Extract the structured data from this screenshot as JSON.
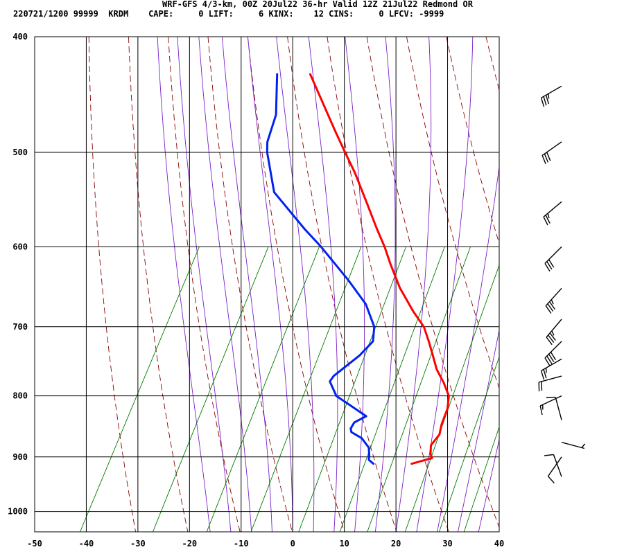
{
  "header": {
    "line1": "WRF-GFS 4/3-km, 00Z 20Jul22 36-hr Valid 12Z 21Jul22 Redmond OR",
    "line2": "220721/1200 99999  KRDM    CAPE:     0 LIFT:     6 KINX:    12 CINS:     0 LFCV: -9999"
  },
  "colors": {
    "frame": "#000000",
    "dry_adiabat": "#8a0000",
    "moist_adiabat": "#7a1fc8",
    "mixing_ratio": "#007a00",
    "temperature": "#ff0000",
    "dewpoint": "#0022ee",
    "barb": "#000000"
  },
  "chart_data": {
    "type": "skew-t",
    "x_axis": {
      "label": "",
      "min": -50,
      "max": 40,
      "ticks": [
        -50,
        -40,
        -30,
        -20,
        -10,
        0,
        10,
        20,
        30,
        40
      ]
    },
    "y_axis": {
      "label": "",
      "min": 400,
      "max": 1040,
      "scale": "log",
      "ticks": [
        400,
        500,
        600,
        700,
        800,
        900,
        1000
      ],
      "reversed": true
    },
    "grid": true,
    "series": [
      {
        "name": "",
        "kind": "temperature",
        "points": [
          {
            "p": 912,
            "t": 16.3
          },
          {
            "p": 907,
            "t": 18.0
          },
          {
            "p": 902,
            "t": 19.7
          },
          {
            "p": 895,
            "t": 19.0
          },
          {
            "p": 880,
            "t": 18.2
          },
          {
            "p": 862,
            "t": 18.8
          },
          {
            "p": 845,
            "t": 18.2
          },
          {
            "p": 820,
            "t": 17.8
          },
          {
            "p": 800,
            "t": 16.8
          },
          {
            "p": 780,
            "t": 14.5
          },
          {
            "p": 760,
            "t": 11.8
          },
          {
            "p": 740,
            "t": 9.7
          },
          {
            "p": 720,
            "t": 7.5
          },
          {
            "p": 700,
            "t": 5.1
          },
          {
            "p": 680,
            "t": 1.6
          },
          {
            "p": 650,
            "t": -3.3
          },
          {
            "p": 620,
            "t": -7.6
          },
          {
            "p": 600,
            "t": -10.4
          },
          {
            "p": 580,
            "t": -13.6
          },
          {
            "p": 550,
            "t": -18.4
          },
          {
            "p": 520,
            "t": -23.5
          },
          {
            "p": 500,
            "t": -27.4
          },
          {
            "p": 480,
            "t": -31.4
          },
          {
            "p": 430,
            "t": -41.9
          }
        ]
      },
      {
        "name": "",
        "kind": "dewpoint",
        "points": [
          {
            "p": 912,
            "t": 8.9
          },
          {
            "p": 905,
            "t": 7.6
          },
          {
            "p": 898,
            "t": 7.3
          },
          {
            "p": 884,
            "t": 6.4
          },
          {
            "p": 868,
            "t": 4.1
          },
          {
            "p": 858,
            "t": 1.5
          },
          {
            "p": 852,
            "t": 1.0
          },
          {
            "p": 842,
            "t": 1.1
          },
          {
            "p": 832,
            "t": 2.8
          },
          {
            "p": 800,
            "t": -5.0
          },
          {
            "p": 778,
            "t": -7.7
          },
          {
            "p": 770,
            "t": -7.5
          },
          {
            "p": 740,
            "t": -4.5
          },
          {
            "p": 720,
            "t": -3.3
          },
          {
            "p": 700,
            "t": -4.5
          },
          {
            "p": 670,
            "t": -8.4
          },
          {
            "p": 640,
            "t": -14.1
          },
          {
            "p": 600,
            "t": -22.7
          },
          {
            "p": 580,
            "t": -27.6
          },
          {
            "p": 540,
            "t": -37.2
          },
          {
            "p": 500,
            "t": -42.5
          },
          {
            "p": 490,
            "t": -43.5
          },
          {
            "p": 465,
            "t": -44.5
          },
          {
            "p": 430,
            "t": -48.3
          }
        ]
      }
    ],
    "winds": [
      {
        "p": 440,
        "dir": 240,
        "spd": 35
      },
      {
        "p": 490,
        "dir": 235,
        "spd": 30
      },
      {
        "p": 550,
        "dir": 230,
        "spd": 25
      },
      {
        "p": 600,
        "dir": 225,
        "spd": 30
      },
      {
        "p": 650,
        "dir": 222,
        "spd": 35
      },
      {
        "p": 690,
        "dir": 220,
        "spd": 35
      },
      {
        "p": 720,
        "dir": 225,
        "spd": 40
      },
      {
        "p": 745,
        "dir": 240,
        "spd": 25
      },
      {
        "p": 770,
        "dir": 255,
        "spd": 20
      },
      {
        "p": 800,
        "dir": 245,
        "spd": 15
      },
      {
        "p": 838,
        "dir": 345,
        "spd": 10
      },
      {
        "p": 875,
        "dir": 105,
        "spd": 5
      },
      {
        "p": 900,
        "dir": 215,
        "spd": 10
      },
      {
        "p": 935,
        "dir": 340,
        "spd": 10
      }
    ]
  }
}
